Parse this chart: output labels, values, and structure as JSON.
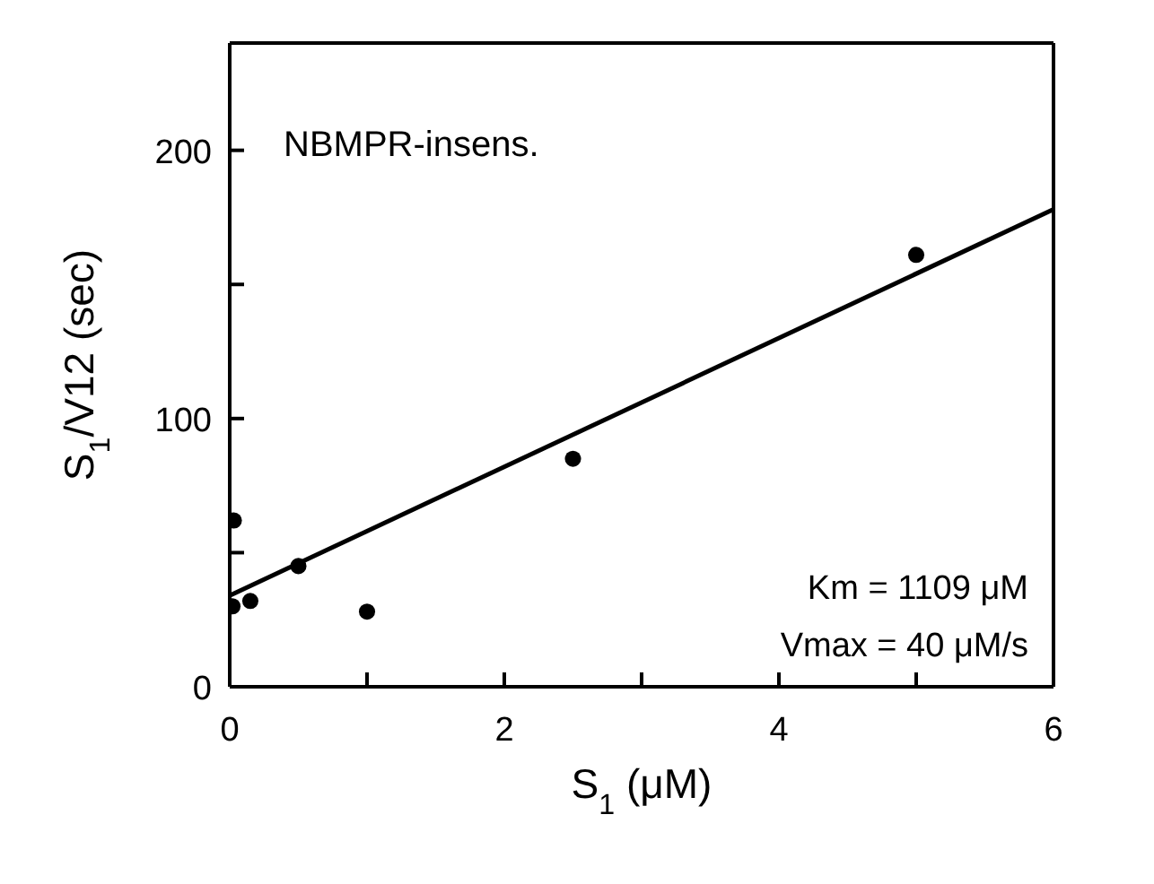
{
  "chart_data": {
    "type": "scatter",
    "xlabel": "S$_{1}$ (μM)",
    "ylabel": "S$_{1}$/V12 (sec)",
    "annotations": [
      "NBMPR-insens.",
      "Km = 1109 μM",
      "Vmax = 40 μM/s"
    ],
    "series": [
      {
        "color": "#000000",
        "marker": "circle",
        "x": [
          0.03,
          0.02,
          0.15,
          0.5,
          1.0,
          2.5,
          5.0
        ],
        "values": [
          62,
          30,
          32,
          45,
          28,
          85,
          161
        ]
      },
      {
        "type": "line",
        "color": "#000000",
        "x": [
          0,
          6
        ],
        "values": [
          34,
          178
        ]
      }
    ],
    "xlim": [
      0,
      6
    ],
    "xticks": [
      0,
      {
        "value": 1,
        "label": null
      },
      2,
      {
        "value": 3,
        "label": null
      },
      4,
      {
        "value": 5,
        "label": null
      },
      6
    ],
    "ylim": [
      0,
      240
    ],
    "yticks": [
      0,
      {
        "value": 50,
        "label": null
      },
      100,
      {
        "value": 150,
        "label": null
      },
      200
    ],
    "grid": false
  }
}
